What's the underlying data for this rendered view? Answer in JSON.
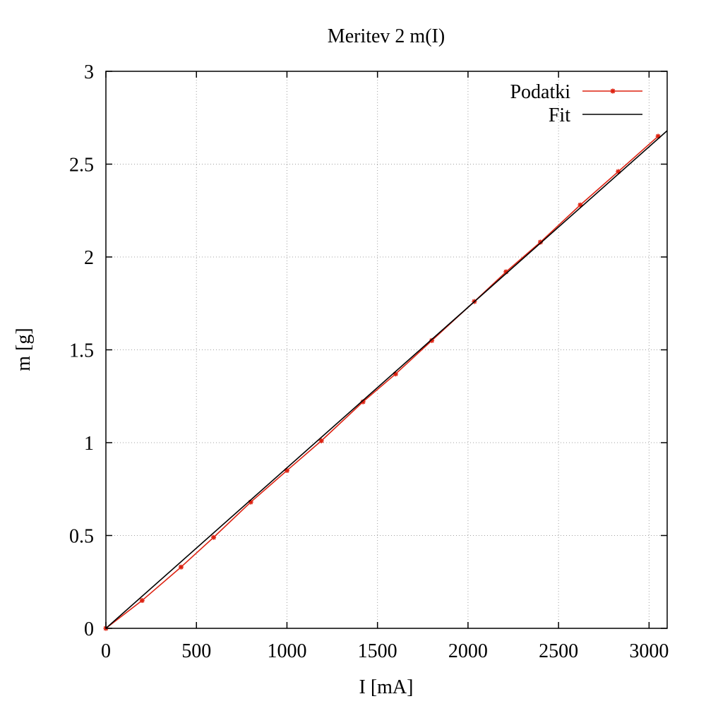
{
  "chart_data": {
    "type": "line",
    "title": "Meritev 2 m(I)",
    "xlabel": "I [mA]",
    "ylabel": "m [g]",
    "xlim": [
      0,
      3100
    ],
    "ylim": [
      0,
      3
    ],
    "xticks": [
      0,
      500,
      1000,
      1500,
      2000,
      2500,
      3000
    ],
    "yticks": [
      0,
      0.5,
      1,
      1.5,
      2,
      2.5,
      3
    ],
    "xtick_labels": [
      "0",
      "500",
      "1000",
      "1500",
      "2000",
      "2500",
      "3000"
    ],
    "ytick_labels": [
      "0",
      "0.5",
      "1",
      "1.5",
      "2",
      "2.5",
      "3"
    ],
    "grid": true,
    "legend_position": "top-right",
    "series": [
      {
        "name": "Podatki",
        "color": "#dd2211",
        "marker": "star",
        "x": [
          0,
          200,
          415,
          595,
          800,
          1000,
          1190,
          1420,
          1600,
          1800,
          2035,
          2210,
          2400,
          2620,
          2830,
          3050
        ],
        "y": [
          0,
          0.15,
          0.33,
          0.49,
          0.68,
          0.85,
          1.01,
          1.22,
          1.37,
          1.55,
          1.76,
          1.92,
          2.08,
          2.28,
          2.46,
          2.65
        ]
      },
      {
        "name": "Fit",
        "color": "#000000",
        "type": "line",
        "x": [
          0,
          3100
        ],
        "y": [
          0,
          2.68
        ]
      }
    ]
  }
}
